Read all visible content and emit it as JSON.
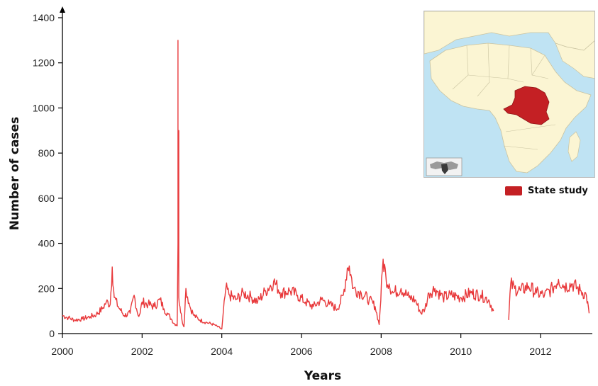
{
  "colors": {
    "series": "#e8393b",
    "axis": "#000000",
    "map_water": "#bfe3f3",
    "map_land": "#fbf5d3",
    "map_highlight": "#c42024"
  },
  "icons": {
    "inset_map": "africa-map-icon",
    "mini_globe": "world-locator-icon"
  },
  "legend": {
    "label": "State study",
    "color": "#c42024"
  },
  "chart_data": {
    "type": "line",
    "title": "",
    "xlabel": "Years",
    "ylabel": "Number of cases",
    "xlim": [
      2000,
      2013.3
    ],
    "ylim": [
      0,
      1400
    ],
    "x_ticks": [
      2000,
      2002,
      2004,
      2006,
      2008,
      2010,
      2012
    ],
    "y_ticks": [
      0,
      200,
      400,
      600,
      800,
      1000,
      1200,
      1400
    ],
    "x_tick_labels": [
      "2000",
      "2002",
      "2004",
      "2006",
      "2008",
      "2010",
      "2012"
    ],
    "y_tick_labels": [
      "0",
      "200",
      "400",
      "600",
      "800",
      "1000",
      "1200",
      "1400"
    ],
    "grid": false,
    "legend_position": "right",
    "segments": [
      {
        "x": [
          2000.0,
          2000.15,
          2000.3,
          2000.5,
          2000.7,
          2000.85,
          2001.0,
          2001.1,
          2001.2,
          2001.25,
          2001.3,
          2001.4,
          2001.55,
          2001.7,
          2001.8,
          2001.9,
          2001.95,
          2002.0,
          2002.15,
          2002.3,
          2002.45,
          2002.55,
          2002.65,
          2002.75,
          2002.8,
          2002.85,
          2002.88,
          2002.9,
          2002.9,
          2002.9,
          2002.92,
          2002.92,
          2002.92,
          2002.95,
          2003.0,
          2003.05,
          2003.1,
          2003.2,
          2003.3,
          2003.45,
          2003.6,
          2003.8,
          2004.0,
          2004.1,
          2004.2,
          2004.35,
          2004.55,
          2004.75,
          2004.9,
          2005.1,
          2005.3,
          2005.5,
          2005.7,
          2005.9,
          2006.1,
          2006.3,
          2006.5,
          2006.7,
          2006.9,
          2007.05,
          2007.15,
          2007.2,
          2007.3,
          2007.5,
          2007.7,
          2007.85,
          2007.95,
          2008.05,
          2008.12,
          2008.2,
          2008.3,
          2008.5,
          2008.7,
          2008.85,
          2009.0,
          2009.1,
          2009.2,
          2009.35,
          2009.55,
          2009.75,
          2010.0,
          2010.25,
          2010.5,
          2010.7,
          2010.82
        ],
        "y": [
          80,
          70,
          60,
          65,
          75,
          85,
          110,
          140,
          130,
          295,
          160,
          120,
          80,
          90,
          170,
          80,
          90,
          140,
          130,
          120,
          150,
          110,
          85,
          60,
          45,
          40,
          35,
          400,
          1300,
          880,
          900,
          350,
          160,
          120,
          60,
          30,
          200,
          120,
          80,
          60,
          50,
          40,
          20,
          200,
          170,
          150,
          180,
          160,
          140,
          190,
          230,
          180,
          190,
          170,
          140,
          120,
          150,
          130,
          110,
          170,
          290,
          300,
          200,
          180,
          150,
          120,
          40,
          330,
          250,
          220,
          180,
          200,
          160,
          150,
          90,
          110,
          180,
          200,
          160,
          170,
          160,
          180,
          170,
          150,
          100
        ]
      },
      {
        "x": [
          2011.2,
          2011.25,
          2011.35,
          2011.5,
          2011.7,
          2011.9,
          2012.1,
          2012.3,
          2012.45,
          2012.6,
          2012.8,
          2013.0,
          2013.15,
          2013.22
        ],
        "y": [
          60,
          220,
          200,
          190,
          210,
          180,
          170,
          200,
          240,
          210,
          220,
          190,
          170,
          90
        ]
      }
    ]
  }
}
